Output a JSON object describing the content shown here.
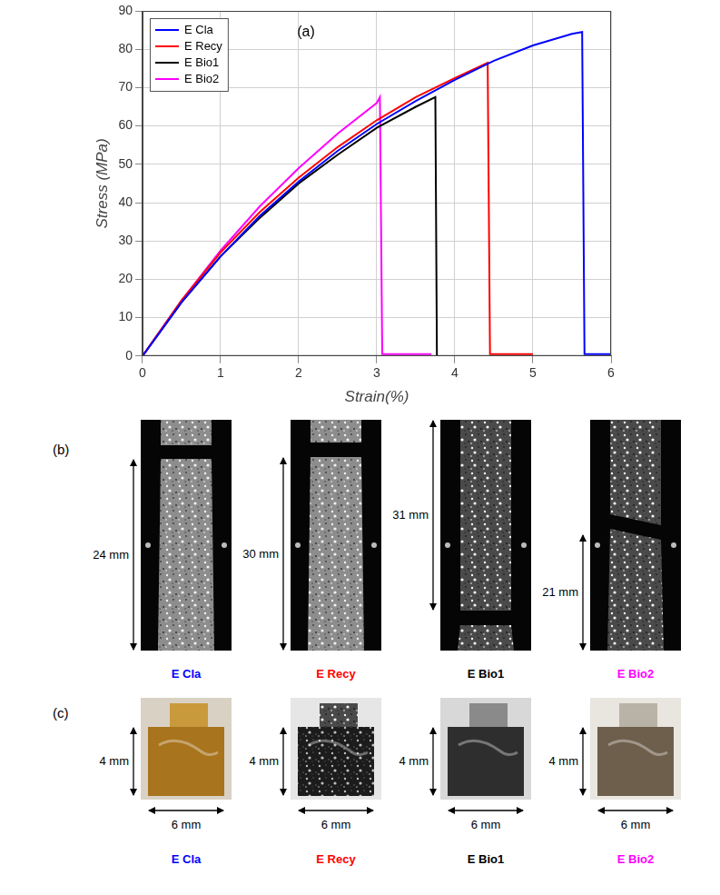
{
  "chart_data": {
    "type": "line",
    "x_label": "Strain(%)",
    "y_label": "Stress (MPa)",
    "annotations": [
      "(a)"
    ],
    "xlim": [
      0,
      6
    ],
    "xticks": [
      0,
      1,
      2,
      3,
      4,
      5,
      6
    ],
    "ylim": [
      0,
      90
    ],
    "yticks": [
      0,
      10,
      20,
      30,
      40,
      50,
      60,
      70,
      80,
      90
    ],
    "grid": true,
    "legend": "upper left",
    "series": [
      {
        "name": "E Cla",
        "color": "#0000ff",
        "x": [
          0,
          0.5,
          1,
          1.5,
          2,
          2.5,
          3,
          3.5,
          4,
          4.5,
          5,
          5.5,
          5.63,
          5.66,
          6
        ],
        "values": [
          0,
          14,
          26,
          36.5,
          45.5,
          53.5,
          60.5,
          66.5,
          72,
          77,
          81,
          84,
          84.5,
          0.5,
          0.5
        ]
      },
      {
        "name": "E Recy",
        "color": "#ff0000",
        "x": [
          0,
          0.5,
          1,
          1.5,
          2,
          2.5,
          3,
          3.5,
          4,
          4.42,
          4.45,
          5
        ],
        "values": [
          0,
          14.5,
          27,
          37.5,
          46.5,
          54.5,
          61.5,
          67.5,
          72.5,
          76.5,
          0.5,
          0.5
        ]
      },
      {
        "name": "E Bio1",
        "color": "#000000",
        "x": [
          0,
          0.5,
          1,
          1.5,
          2,
          2.5,
          3,
          3.5,
          3.75,
          3.77
        ],
        "values": [
          0,
          14,
          26,
          36,
          45,
          52.5,
          59.5,
          65,
          67.5,
          0
        ]
      },
      {
        "name": "E Bio2",
        "color": "#ff00ff",
        "x": [
          0,
          0.5,
          1,
          1.5,
          2,
          2.5,
          3,
          3.04,
          3.07,
          3.7
        ],
        "values": [
          0,
          14.5,
          27.5,
          39,
          49,
          58,
          66,
          67.5,
          0.5,
          0.5
        ]
      }
    ]
  },
  "specimens": {
    "label": "(b)",
    "items": [
      {
        "name": "E Cla",
        "color": "#0000ff",
        "length_label": "24 mm"
      },
      {
        "name": "E Recy",
        "color": "#ff0000",
        "length_label": "30 mm"
      },
      {
        "name": "E Bio1",
        "color": "#000000",
        "length_label": "31 mm"
      },
      {
        "name": "E Bio2",
        "color": "#ff00ff",
        "length_label": "21 mm"
      }
    ]
  },
  "sections": {
    "label": "(c)",
    "items": [
      {
        "name": "E Cla",
        "color": "#0000ff",
        "height_label": "4 mm",
        "width_label": "6 mm"
      },
      {
        "name": "E Recy",
        "color": "#ff0000",
        "height_label": "4 mm",
        "width_label": "6 mm"
      },
      {
        "name": "E Bio1",
        "color": "#000000",
        "height_label": "4 mm",
        "width_label": "6 mm"
      },
      {
        "name": "E Bio2",
        "color": "#ff00ff",
        "height_label": "4 mm",
        "width_label": "6 mm"
      }
    ]
  }
}
